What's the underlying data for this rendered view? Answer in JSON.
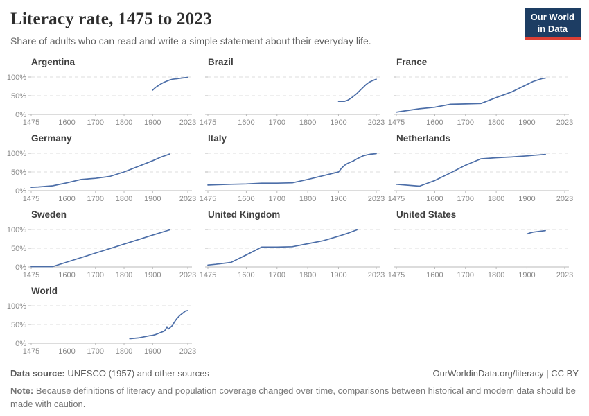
{
  "header": {
    "title": "Literacy rate, 1475 to 2023",
    "subtitle": "Share of adults who can read and write a simple statement about their everyday life."
  },
  "logo": {
    "line1": "Our World",
    "line2": "in Data",
    "bg_color": "#1d3d63",
    "accent_color": "#dc3f34"
  },
  "footer": {
    "datasource_label": "Data source:",
    "datasource_text": " UNESCO (1957) and other sources",
    "link": "OurWorldinData.org/literacy | CC BY",
    "note_label": "Note:",
    "note_text": " Because definitions of literacy and population coverage changed over time, comparisons between historical and modern data should be made with caution."
  },
  "chart_data": {
    "type": "line",
    "xlim": [
      1475,
      2023
    ],
    "ylim": [
      0,
      100
    ],
    "x_ticks": [
      1475,
      1600,
      1700,
      1800,
      1900,
      2023
    ],
    "y_ticks": [
      {
        "value": 0,
        "label": "0%"
      },
      {
        "value": 50,
        "label": "50%"
      },
      {
        "value": 100,
        "label": "100%"
      }
    ],
    "grid": "dashed horizontal at 50% and 100%",
    "line_color": "#4c6ea8",
    "grid_color": "#dedede",
    "axis_color": "#b9b9b9",
    "tick_label_color": "#8a8a8a",
    "facets": [
      {
        "title": "Argentina",
        "show_y_labels": true,
        "points": [
          [
            1900,
            65
          ],
          [
            1910,
            72
          ],
          [
            1920,
            77
          ],
          [
            1930,
            82
          ],
          [
            1940,
            86
          ],
          [
            1950,
            89
          ],
          [
            1960,
            92
          ],
          [
            1970,
            94
          ],
          [
            1980,
            95
          ],
          [
            1990,
            96
          ],
          [
            2000,
            97
          ],
          [
            2010,
            98
          ],
          [
            2023,
            99
          ]
        ]
      },
      {
        "title": "Brazil",
        "show_y_labels": false,
        "points": [
          [
            1900,
            35
          ],
          [
            1910,
            35
          ],
          [
            1920,
            35
          ],
          [
            1930,
            38
          ],
          [
            1940,
            43
          ],
          [
            1950,
            49
          ],
          [
            1960,
            56
          ],
          [
            1970,
            64
          ],
          [
            1980,
            72
          ],
          [
            1990,
            80
          ],
          [
            2000,
            86
          ],
          [
            2010,
            90
          ],
          [
            2023,
            94
          ]
        ]
      },
      {
        "title": "France",
        "show_y_labels": false,
        "points": [
          [
            1475,
            6
          ],
          [
            1500,
            9
          ],
          [
            1550,
            15
          ],
          [
            1600,
            19
          ],
          [
            1650,
            27
          ],
          [
            1700,
            28
          ],
          [
            1750,
            29
          ],
          [
            1800,
            45
          ],
          [
            1850,
            60
          ],
          [
            1900,
            80
          ],
          [
            1920,
            88
          ],
          [
            1950,
            96
          ],
          [
            1960,
            97
          ]
        ]
      },
      {
        "title": "Germany",
        "show_y_labels": true,
        "points": [
          [
            1475,
            9
          ],
          [
            1500,
            10
          ],
          [
            1550,
            13
          ],
          [
            1600,
            21
          ],
          [
            1650,
            30
          ],
          [
            1700,
            33
          ],
          [
            1750,
            38
          ],
          [
            1800,
            50
          ],
          [
            1850,
            65
          ],
          [
            1900,
            80
          ],
          [
            1930,
            90
          ],
          [
            1960,
            98
          ]
        ]
      },
      {
        "title": "Italy",
        "show_y_labels": false,
        "points": [
          [
            1475,
            15
          ],
          [
            1550,
            17
          ],
          [
            1600,
            18
          ],
          [
            1650,
            20
          ],
          [
            1700,
            20
          ],
          [
            1750,
            21
          ],
          [
            1800,
            30
          ],
          [
            1850,
            40
          ],
          [
            1900,
            50
          ],
          [
            1910,
            60
          ],
          [
            1920,
            68
          ],
          [
            1930,
            73
          ],
          [
            1950,
            80
          ],
          [
            1960,
            85
          ],
          [
            1980,
            93
          ],
          [
            2000,
            97
          ],
          [
            2023,
            99
          ]
        ]
      },
      {
        "title": "Netherlands",
        "show_y_labels": false,
        "points": [
          [
            1475,
            17
          ],
          [
            1550,
            12
          ],
          [
            1600,
            27
          ],
          [
            1650,
            47
          ],
          [
            1700,
            68
          ],
          [
            1750,
            85
          ],
          [
            1800,
            88
          ],
          [
            1850,
            90
          ],
          [
            1900,
            93
          ],
          [
            1930,
            95
          ],
          [
            1960,
            97
          ]
        ]
      },
      {
        "title": "Sweden",
        "show_y_labels": true,
        "points": [
          [
            1475,
            1
          ],
          [
            1550,
            1
          ],
          [
            1600,
            13
          ],
          [
            1700,
            37
          ],
          [
            1800,
            61
          ],
          [
            1900,
            85
          ],
          [
            1960,
            99
          ]
        ]
      },
      {
        "title": "United Kingdom",
        "show_y_labels": false,
        "points": [
          [
            1475,
            5
          ],
          [
            1500,
            7
          ],
          [
            1550,
            12
          ],
          [
            1600,
            32
          ],
          [
            1650,
            53
          ],
          [
            1700,
            53
          ],
          [
            1750,
            54
          ],
          [
            1800,
            62
          ],
          [
            1850,
            70
          ],
          [
            1900,
            82
          ],
          [
            1930,
            90
          ],
          [
            1960,
            99
          ]
        ]
      },
      {
        "title": "United States",
        "show_y_labels": false,
        "points": [
          [
            1900,
            88
          ],
          [
            1910,
            91
          ],
          [
            1920,
            93
          ],
          [
            1940,
            95
          ],
          [
            1960,
            97
          ]
        ]
      },
      {
        "title": "World",
        "show_y_labels": true,
        "points": [
          [
            1820,
            12
          ],
          [
            1850,
            14
          ],
          [
            1870,
            17
          ],
          [
            1890,
            20
          ],
          [
            1900,
            21
          ],
          [
            1910,
            23
          ],
          [
            1920,
            26
          ],
          [
            1930,
            29
          ],
          [
            1940,
            32
          ],
          [
            1945,
            36
          ],
          [
            1950,
            44
          ],
          [
            1955,
            38
          ],
          [
            1960,
            41
          ],
          [
            1970,
            48
          ],
          [
            1975,
            55
          ],
          [
            1980,
            61
          ],
          [
            1985,
            66
          ],
          [
            1990,
            70
          ],
          [
            1995,
            74
          ],
          [
            2000,
            77
          ],
          [
            2005,
            80
          ],
          [
            2010,
            83
          ],
          [
            2015,
            86
          ],
          [
            2023,
            87
          ]
        ]
      }
    ]
  }
}
